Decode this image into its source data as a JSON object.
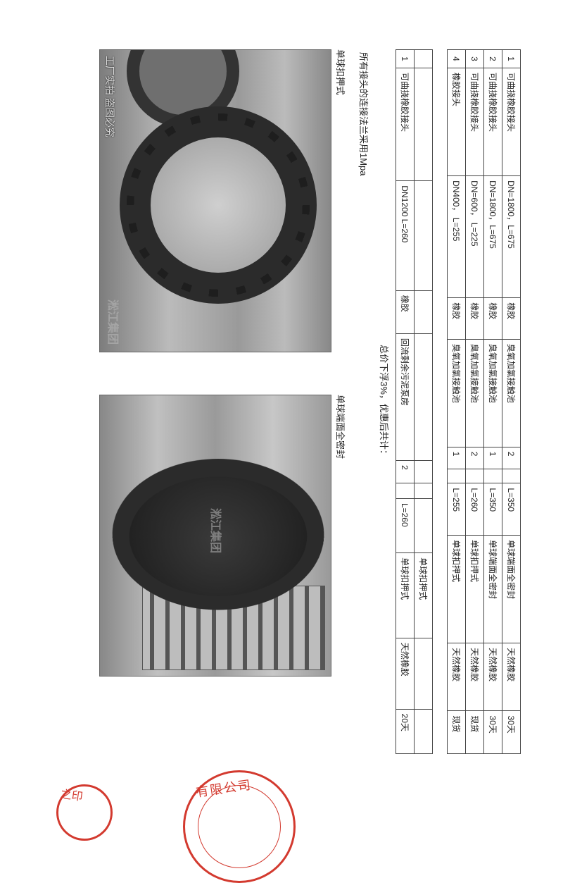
{
  "table1": {
    "rows": [
      {
        "n": "1",
        "name": "可曲挠橡胶接头",
        "spec": "DN=1800，L=675",
        "mat": "橡胶",
        "use": "臭氧加氯接触池",
        "qty": "2",
        "len": "L=350",
        "type": "单球端面全密封",
        "rub": "天然橡胶",
        "lead": "30天"
      },
      {
        "n": "2",
        "name": "可曲挠橡胶接头",
        "spec": "DN=1800，L=675",
        "mat": "橡胶",
        "use": "臭氧加氯接触池",
        "qty": "1",
        "len": "L=350",
        "type": "单球端面全密封",
        "rub": "天然橡胶",
        "lead": "30天"
      },
      {
        "n": "3",
        "name": "可曲挠橡胶接头",
        "spec": "DN=600，  L=225",
        "mat": "橡胶",
        "use": "臭氧加氯接触池",
        "qty": "2",
        "len": "L=260",
        "type": "单球扣押式",
        "rub": "天然橡胶",
        "lead": "现货"
      },
      {
        "n": "4",
        "name": "橡胶接头",
        "spec": "DN400，   L=255",
        "mat": "橡胶",
        "use": "臭氧加氯接触池",
        "qty": "1",
        "len": "L=255",
        "type": "单球扣押式",
        "rub": "天然橡胶",
        "lead": "现货"
      }
    ]
  },
  "table2": {
    "rows": [
      {
        "n": "",
        "name": "",
        "spec": "",
        "mat": "",
        "use": "",
        "qty": "",
        "len": "",
        "type": "单球扣押式",
        "rub": "",
        "lead": ""
      },
      {
        "n": "1",
        "name": "可曲挠橡胶接头",
        "spec": "DN1200    L=260",
        "mat": "橡胶",
        "use": "回流剩余污泥泵房",
        "qty": "2",
        "len": "L=260",
        "type": "单球扣押式",
        "rub": "天然橡胶",
        "lead": "20天"
      }
    ]
  },
  "notes": {
    "flange": "所有接头的连接法兰采用1Mpa",
    "summary": "总价下浮3%，优惠后共计："
  },
  "photoLabels": {
    "left": "单球扣押式",
    "right": "单球端面全密封"
  },
  "watermark": {
    "group": "淞江集团",
    "caption": "工厂实拍    盗图必究"
  },
  "stampText1": "有限公司",
  "stampText2": "之印",
  "colors": {
    "border": "#444444",
    "text": "#222222",
    "stamp": "#d33a2f",
    "bg": "#ffffff"
  }
}
